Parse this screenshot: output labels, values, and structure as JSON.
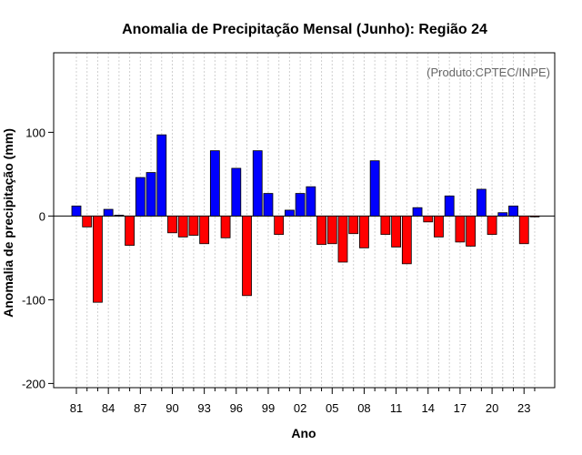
{
  "chart_data": {
    "type": "bar",
    "title": "Anomalia de Precipitação Mensal (Junho): Região 24",
    "note": "(Produto:CPTEC/INPE)",
    "xlabel": "Ano",
    "ylabel": "Anomalia de precipitação (mm)",
    "ylim": [
      -205,
      195
    ],
    "yticks": [
      -200,
      -100,
      0,
      100
    ],
    "xtick_labels": [
      "81",
      "84",
      "87",
      "90",
      "93",
      "96",
      "99",
      "02",
      "05",
      "08",
      "11",
      "14",
      "17",
      "20",
      "23"
    ],
    "first_year": 1981,
    "categories": [
      "1981",
      "1982",
      "1983",
      "1984",
      "1985",
      "1986",
      "1987",
      "1988",
      "1989",
      "1990",
      "1991",
      "1992",
      "1993",
      "1994",
      "1995",
      "1996",
      "1997",
      "1998",
      "1999",
      "2000",
      "2001",
      "2002",
      "2003",
      "2004",
      "2005",
      "2006",
      "2007",
      "2008",
      "2009",
      "2010",
      "2011",
      "2012",
      "2013",
      "2014",
      "2015",
      "2016",
      "2017",
      "2018",
      "2019",
      "2020",
      "2021",
      "2022",
      "2023",
      "2024"
    ],
    "values": [
      12,
      -13,
      -103,
      8,
      1,
      -35,
      46,
      52,
      97,
      -20,
      -25,
      -23,
      -33,
      78,
      -26,
      57,
      -95,
      78,
      27,
      -22,
      7,
      27,
      35,
      -34,
      -33,
      -55,
      -21,
      -38,
      66,
      -22,
      -37,
      -57,
      10,
      -7,
      -25,
      24,
      -31,
      -36,
      32,
      -22,
      4,
      12,
      -33,
      -1
    ],
    "positive_color": "#0000ff",
    "negative_color": "#ff0000",
    "grid": true
  }
}
